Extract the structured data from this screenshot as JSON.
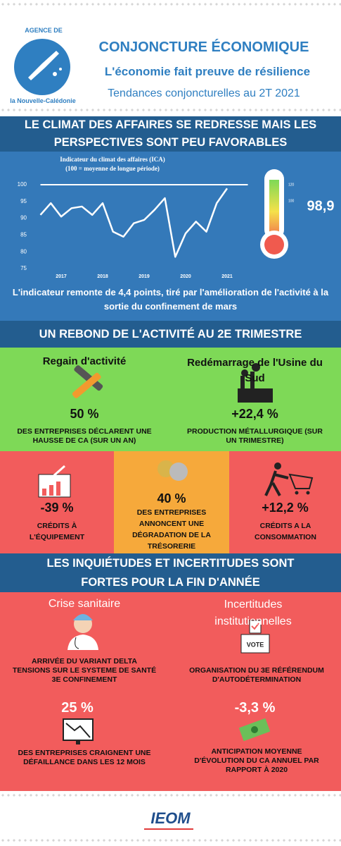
{
  "header": {
    "logo_top": "AGENCE DE",
    "logo_bottom": "la Nouvelle-Calédonie",
    "title": "CONJONCTURE ÉCONOMIQUE",
    "subtitle": "L'économie fait preuve de résilience",
    "tagline": "Tendances conjoncturelles au 2T 2021"
  },
  "climate": {
    "heading": "LE CLIMAT DES AFFAIRES SE REDRESSE MAIS LES PERSPECTIVES SONT PEU FAVORABLES",
    "chart": {
      "type": "line",
      "title": "Indicateur du climat des affaires (ICA)",
      "subtitle": "(100 = moyenne de longue période)",
      "x": [
        2016.5,
        2016.75,
        2017,
        2017.25,
        2017.5,
        2017.75,
        2018,
        2018.25,
        2018.5,
        2018.75,
        2019,
        2019.25,
        2019.5,
        2019.75,
        2020,
        2020.25,
        2020.5,
        2020.75,
        2021
      ],
      "values": [
        91,
        94.5,
        90.5,
        93,
        93.5,
        91,
        94.5,
        86,
        84.5,
        88.5,
        89.5,
        92.5,
        96,
        78.5,
        85.5,
        89,
        86,
        94.5,
        98.9
      ],
      "color": "#ffffff",
      "reference_line": 100,
      "xlim": [
        2016.5,
        2021.5
      ],
      "xticks": [
        2017,
        2018,
        2019,
        2020,
        2021
      ],
      "ylim": [
        75,
        100
      ],
      "yticks": [
        75,
        80,
        85,
        90,
        95,
        100
      ]
    },
    "thermometer": {
      "ticks": [
        "120",
        "100"
      ],
      "value": "98,9"
    },
    "caption": "L'indicateur  remonte de 4,4 points, tiré par l'amélioration de l'activité à la sortie du confinement de mars"
  },
  "activity": {
    "heading": "UN REBOND DE L'ACTIVITÉ AU 2E TRIMESTRE",
    "cards": [
      {
        "title": "Regain d'activité",
        "value": "50 %",
        "text": "DES ENTREPRISES DÉCLARENT UNE HAUSSE DE CA (SUR UN AN)"
      },
      {
        "title": "Redémarrage de l'Usine du Sud",
        "value": "+22,4 %",
        "text": "PRODUCTION MÉTALLURGIQUE (SUR UN TRIMESTRE)"
      },
      {
        "value": "-39 %",
        "text": "CRÉDITS À L'ÉQUIPEMENT"
      },
      {
        "value": "40 %",
        "text": "DES ENTREPRISES ANNONCENT UNE DÉGRADATION DE LA TRÉSORERIE"
      },
      {
        "value": "+12,2 %",
        "text": "CRÉDITS A LA CONSOMMATION"
      }
    ]
  },
  "uncertainty": {
    "heading": "LES INQUIÉTUDES ET INCERTITUDES SONT FORTES POUR LA FIN D'ANNÉE",
    "columns": [
      {
        "title": "Crise sanitaire",
        "items": [
          "ARRIVÉE DU VARIANT DELTA",
          "TENSIONS SUR LE SYSTEME DE SANTÉ",
          "3E CONFINEMENT"
        ],
        "value": "25 %",
        "text": "DES ENTREPRISES CRAIGNENT UNE DÉFAILLANCE  DANS LES 12 MOIS"
      },
      {
        "title": "Incertitudes institutionnelles",
        "vote": "VOTE",
        "items": [
          "ORGANISATION DU 3E RÉFÉRENDUM D'AUTODÉTERMINATION"
        ],
        "value": "-3,3 %",
        "text": "ANTICIPATION MOYENNE D'ÉVOLUTION DU CA ANNUEL PAR RAPPORT À 2020"
      }
    ]
  },
  "footer": {
    "logo": "IEOM"
  }
}
